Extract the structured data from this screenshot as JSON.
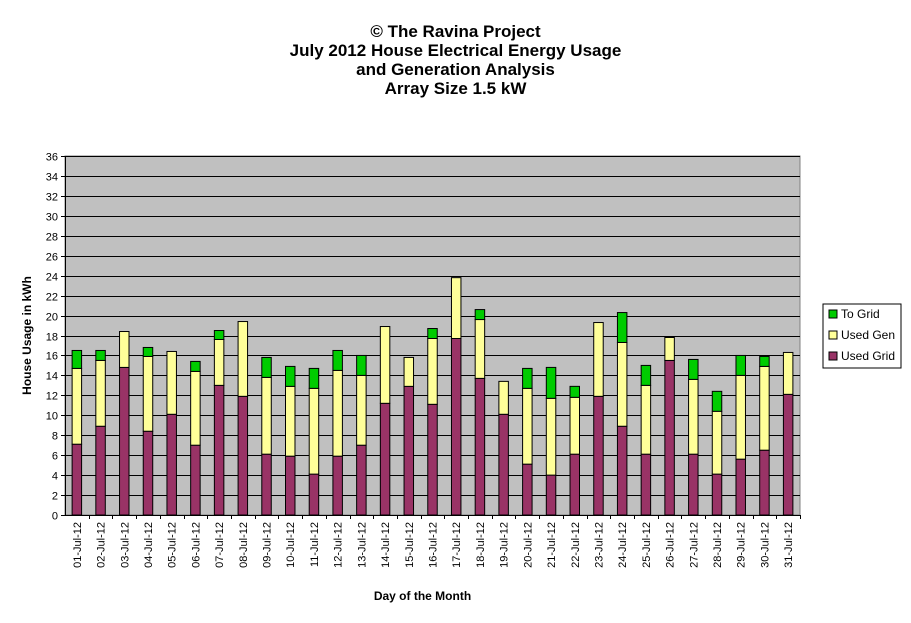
{
  "chart_data": {
    "type": "bar",
    "stacked": true,
    "title_lines": [
      "© The Ravina Project",
      "July 2012 House Electrical Energy Usage",
      "and Generation Analysis",
      "Array Size 1.5 kW"
    ],
    "xlabel": "Day of the Month",
    "ylabel": "House Usage in kWh",
    "ylim": [
      0,
      36
    ],
    "ytick_step": 2,
    "grid": true,
    "legend_position": "right",
    "categories": [
      "01-Jul-12",
      "02-Jul-12",
      "03-Jul-12",
      "04-Jul-12",
      "05-Jul-12",
      "06-Jul-12",
      "07-Jul-12",
      "08-Jul-12",
      "09-Jul-12",
      "10-Jul-12",
      "11-Jul-12",
      "12-Jul-12",
      "13-Jul-12",
      "14-Jul-12",
      "15-Jul-12",
      "16-Jul-12",
      "17-Jul-12",
      "18-Jul-12",
      "19-Jul-12",
      "20-Jul-12",
      "21-Jul-12",
      "22-Jul-12",
      "23-Jul-12",
      "24-Jul-12",
      "25-Jul-12",
      "26-Jul-12",
      "27-Jul-12",
      "28-Jul-12",
      "29-Jul-12",
      "30-Jul-12",
      "31-Jul-12"
    ],
    "series": [
      {
        "name": "Used Grid",
        "color": "#993366",
        "values": [
          7.1,
          8.9,
          14.8,
          8.4,
          10.1,
          7.0,
          13.0,
          11.9,
          6.1,
          5.9,
          4.1,
          5.9,
          7.0,
          11.2,
          12.9,
          11.1,
          17.7,
          13.7,
          10.1,
          5.1,
          4.0,
          6.1,
          11.9,
          8.9,
          6.1,
          15.5,
          6.1,
          4.1,
          5.6,
          6.5,
          12.1
        ]
      },
      {
        "name": "Used Gen",
        "color": "#FFFF99",
        "values": [
          7.6,
          6.6,
          3.6,
          7.5,
          6.3,
          7.4,
          4.6,
          7.5,
          7.7,
          7.0,
          8.6,
          8.6,
          7.0,
          7.7,
          2.9,
          6.6,
          6.1,
          5.9,
          3.3,
          7.6,
          7.7,
          5.7,
          7.4,
          8.4,
          6.9,
          2.3,
          7.5,
          6.3,
          8.4,
          8.4,
          4.2
        ]
      },
      {
        "name": "To Grid",
        "color": "#00CC00",
        "values": [
          1.8,
          1.0,
          0.0,
          0.9,
          0.0,
          1.0,
          0.9,
          0.0,
          2.0,
          2.0,
          2.0,
          2.0,
          2.0,
          0.0,
          0.0,
          1.0,
          0.0,
          1.0,
          0.0,
          2.0,
          3.1,
          1.1,
          0.0,
          3.0,
          2.0,
          0.0,
          2.0,
          2.0,
          2.0,
          1.0,
          0.0
        ]
      }
    ],
    "legend_order": [
      "To Grid",
      "Used Gen",
      "Used Grid"
    ],
    "plot_background": "#C0C0C0",
    "edge_color": "#000000"
  }
}
